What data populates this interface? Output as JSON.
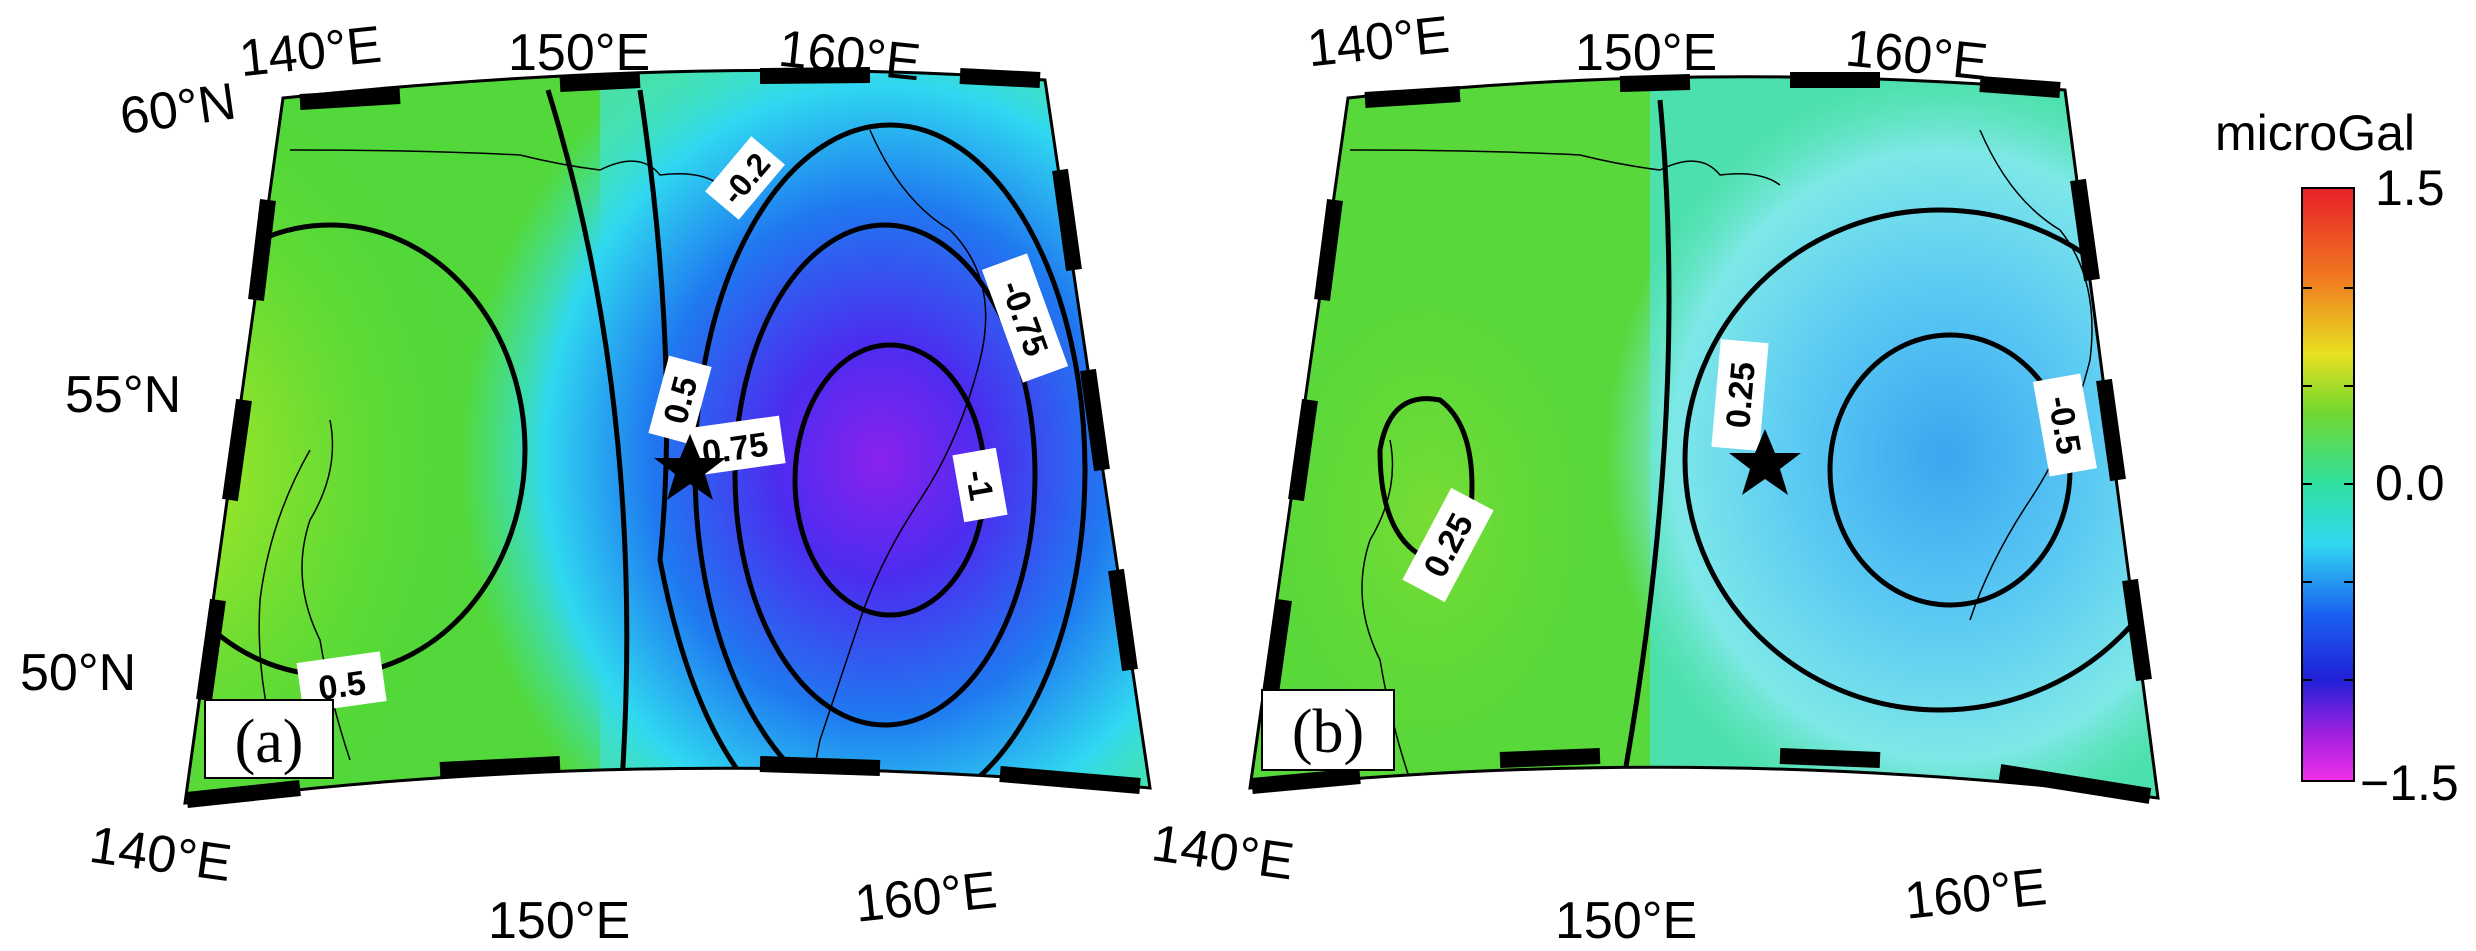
{
  "panels": [
    {
      "id": "a",
      "tag": "(a)",
      "lon_labels_top": [
        "140°E",
        "150°E",
        "160°E"
      ],
      "lon_labels_bottom": [
        "140°E",
        "150°E",
        "160°E"
      ],
      "lat_labels": [
        "60°N",
        "55°N",
        "50°N"
      ],
      "contour_labels": [
        "0.5",
        "0.5",
        "0.75",
        "-0.2",
        "-0.75",
        "-1"
      ]
    },
    {
      "id": "b",
      "tag": "(b)",
      "lon_labels_top": [
        "140°E",
        "150°E",
        "160°E"
      ],
      "lon_labels_bottom": [
        "140°E",
        "150°E",
        "160°E"
      ],
      "contour_labels": [
        "0.25",
        "0.25",
        "-0.5"
      ]
    }
  ],
  "colorbar": {
    "unit": "microGal",
    "max_label": "1.5",
    "mid_label": "0.0",
    "min_label": "−1.5",
    "range": [
      -1.5,
      1.5
    ]
  }
}
